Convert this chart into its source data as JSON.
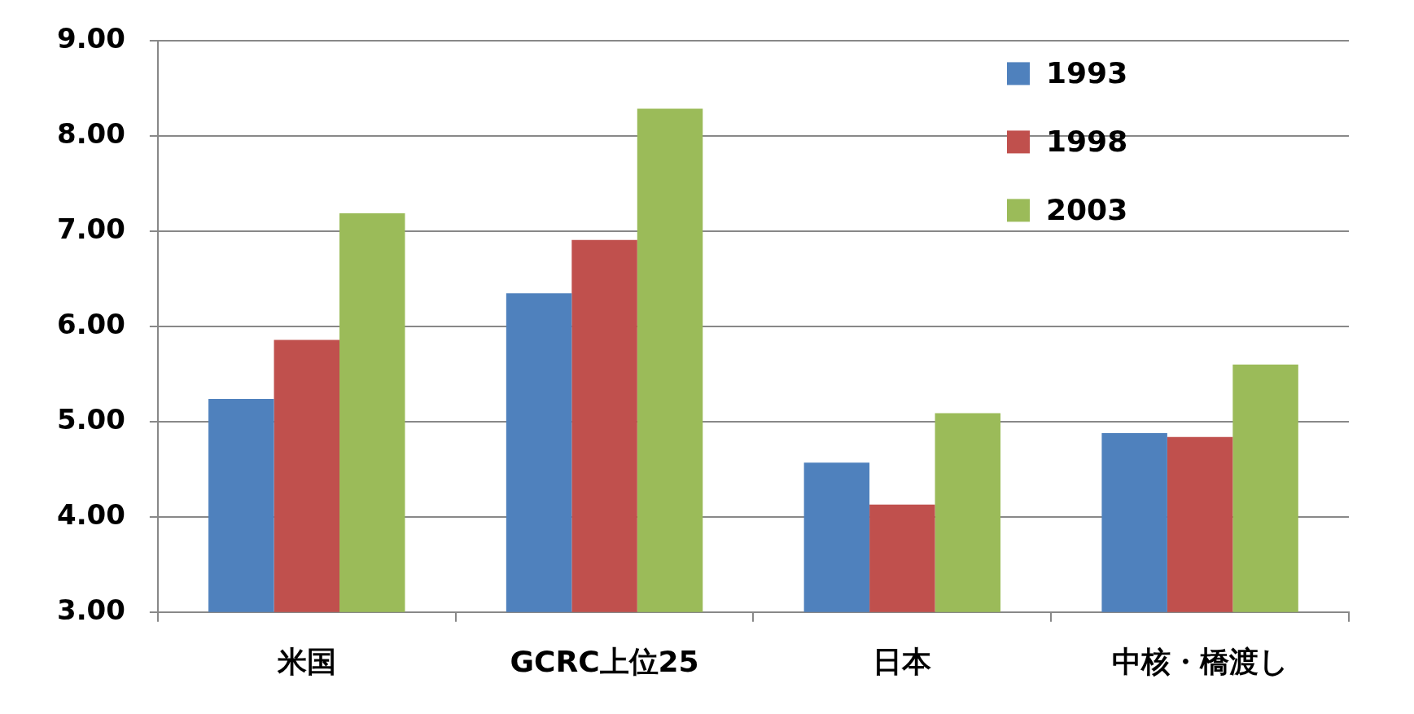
{
  "chart_data": {
    "type": "bar",
    "categories": [
      "米国",
      "GCRC上位25",
      "日本",
      "中核・橋渡し"
    ],
    "series": [
      {
        "name": "1993",
        "color": "#4f81bd",
        "values": [
          5.24,
          6.35,
          4.57,
          4.88
        ]
      },
      {
        "name": "1998",
        "color": "#c0504d",
        "values": [
          5.86,
          6.91,
          4.13,
          4.84
        ]
      },
      {
        "name": "2003",
        "color": "#9bbb59",
        "values": [
          7.19,
          8.29,
          5.09,
          5.6
        ]
      }
    ],
    "ylim": [
      3,
      9
    ],
    "yticks": [
      {
        "value": 3,
        "label": "3.00"
      },
      {
        "value": 4,
        "label": "4.00"
      },
      {
        "value": 5,
        "label": "5.00"
      },
      {
        "value": 6,
        "label": "6.00"
      },
      {
        "value": 7,
        "label": "7.00"
      },
      {
        "value": 8,
        "label": "8.00"
      },
      {
        "value": 9,
        "label": "9.00"
      }
    ],
    "grid": "y",
    "legend": "top right"
  }
}
